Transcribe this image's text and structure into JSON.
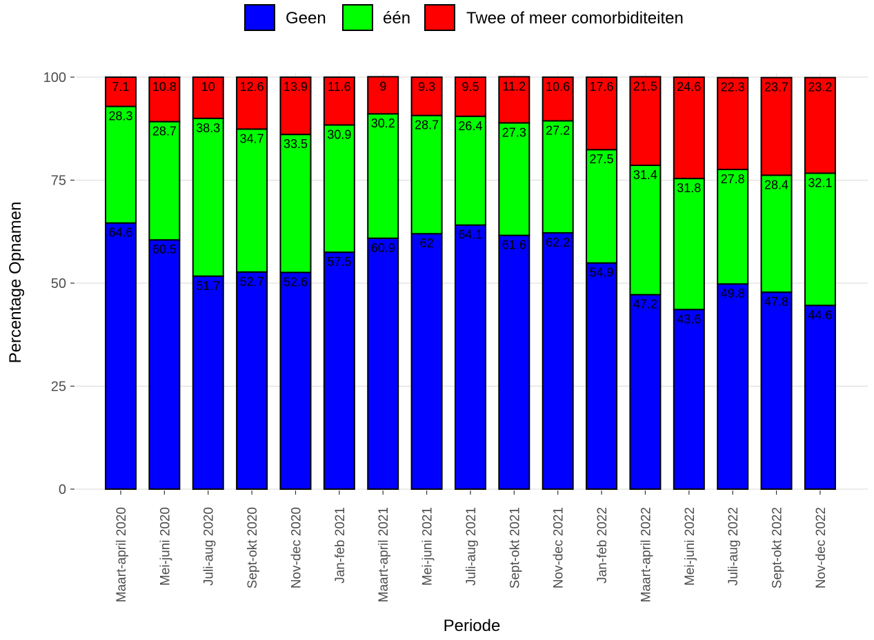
{
  "chart_data": {
    "type": "bar",
    "stacked": true,
    "title": "",
    "xlabel": "Periode",
    "ylabel": "Percentage Opnamen",
    "ylim": [
      0,
      100
    ],
    "yticks": [
      0,
      25,
      50,
      75,
      100
    ],
    "grid": true,
    "legend_position": "top",
    "categories": [
      "Maart-april 2020",
      "Mei-juni 2020",
      "Juli-aug 2020",
      "Sept-okt 2020",
      "Nov-dec 2020",
      "Jan-feb 2021",
      "Maart-april 2021",
      "Mei-juni 2021",
      "Juli-aug 2021",
      "Sept-okt 2021",
      "Nov-dec 2021",
      "Jan-feb 2022",
      "Maart-april 2022",
      "Mei-juni 2022",
      "Juli-aug 2022",
      "Sept-okt 2022",
      "Nov-dec 2022"
    ],
    "series": [
      {
        "name": "Geen",
        "color": "#0000ff",
        "values": [
          64.6,
          60.5,
          51.7,
          52.7,
          52.6,
          57.5,
          60.9,
          62,
          64.1,
          61.6,
          62.2,
          54.9,
          47.2,
          43.6,
          49.8,
          47.8,
          44.6
        ]
      },
      {
        "name": "één",
        "color": "#00ff00",
        "values": [
          28.3,
          28.7,
          38.3,
          34.7,
          33.5,
          30.9,
          30.2,
          28.7,
          26.4,
          27.3,
          27.2,
          27.5,
          31.4,
          31.8,
          27.8,
          28.4,
          32.1
        ]
      },
      {
        "name": "Twee of meer comorbiditeiten",
        "color": "#ff0000",
        "values": [
          7.1,
          10.8,
          10,
          12.6,
          13.9,
          11.6,
          9,
          9.3,
          9.5,
          11.2,
          10.6,
          17.6,
          21.5,
          24.6,
          22.3,
          23.7,
          23.2
        ]
      }
    ]
  }
}
